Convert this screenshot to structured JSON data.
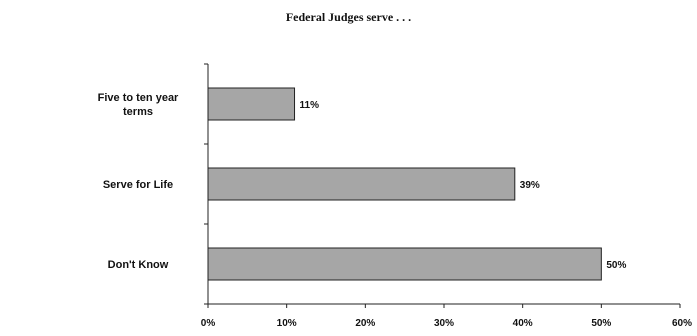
{
  "chart_data": {
    "type": "bar",
    "orientation": "horizontal",
    "title": "Federal Judges serve . . .",
    "categories": [
      [
        "Five to ten year",
        "terms"
      ],
      [
        "Serve for Life"
      ],
      [
        "Don't Know"
      ]
    ],
    "values": [
      11,
      39,
      50
    ],
    "data_labels": [
      "11%",
      "39%",
      "50%"
    ],
    "xlim": [
      0,
      60
    ],
    "x_ticks": [
      0,
      10,
      20,
      30,
      40,
      50,
      60
    ],
    "x_tick_labels": [
      "0%",
      "10%",
      "20%",
      "30%",
      "40%",
      "50%",
      "60%"
    ],
    "grid": false,
    "legend": "none",
    "bar_color": "#a6a6a6",
    "bar_edge_color": "#222222"
  }
}
